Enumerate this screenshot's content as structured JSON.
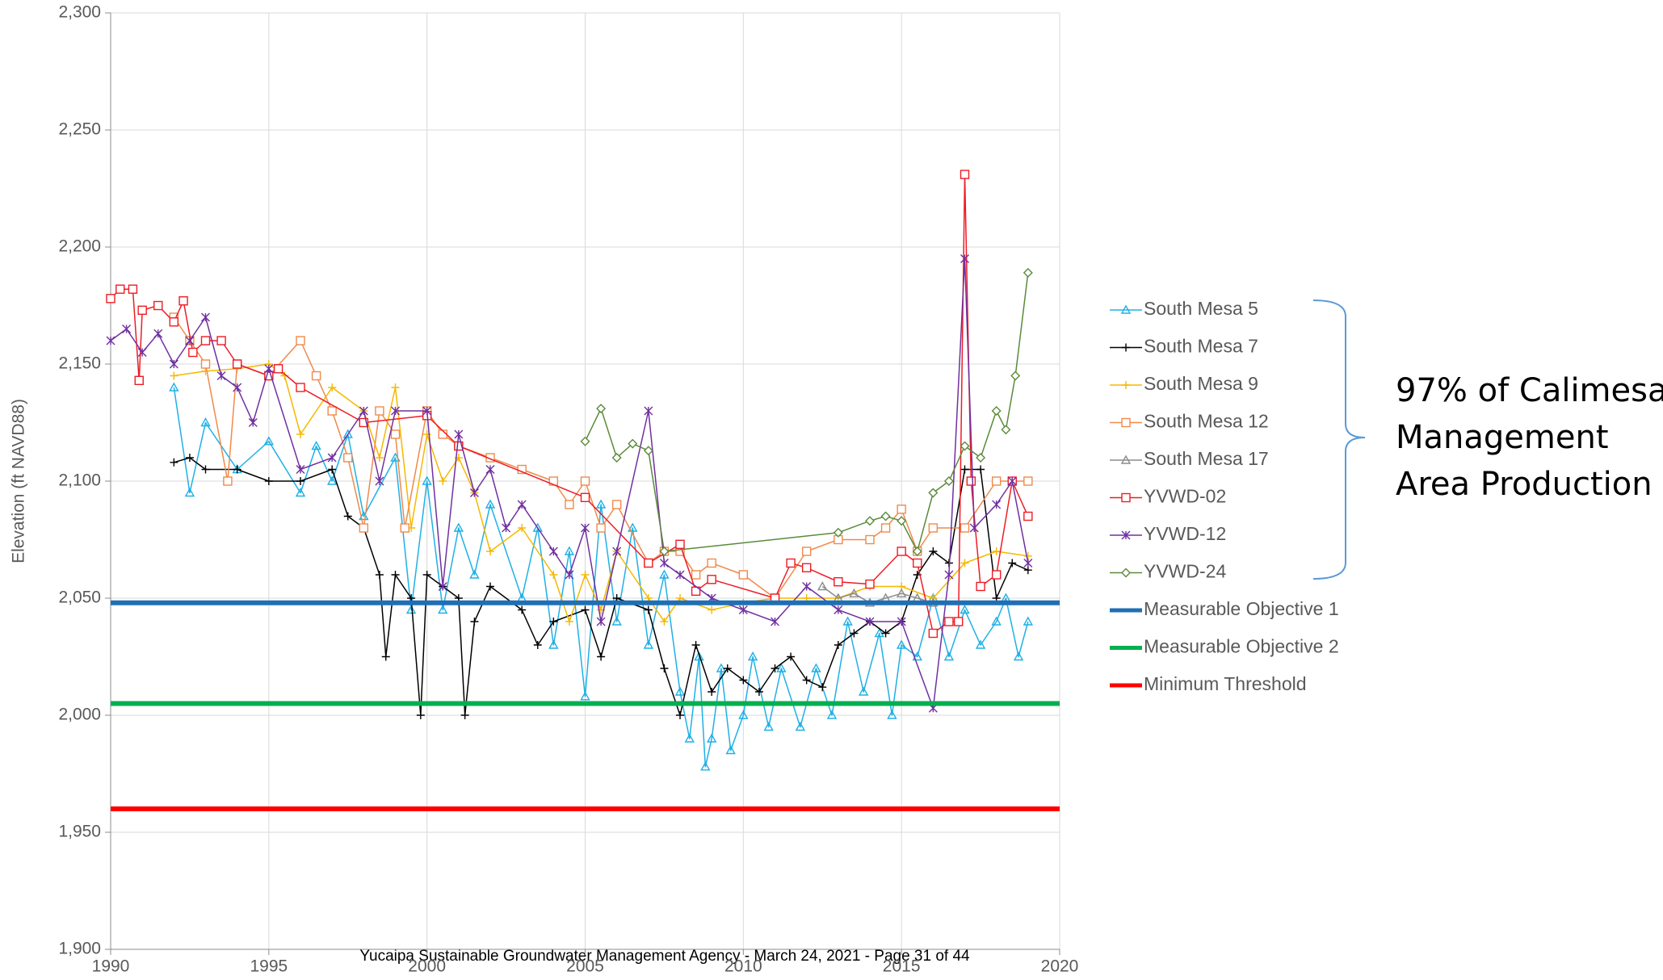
{
  "chart_data": {
    "type": "line",
    "y_label": "Elevation (ft NAVD88)",
    "footer": "Yucaipa Sustainable Groundwater Management Agency - March 24, 2021 - Page 31 of 44",
    "annotation": [
      "97% of Calimesa",
      "Management",
      "Area  Production"
    ],
    "xlim": [
      1990,
      2020
    ],
    "xticks": [
      1990,
      1995,
      2000,
      2005,
      2010,
      2015,
      2020
    ],
    "ylim": [
      1900,
      2300
    ],
    "yticks": [
      {
        "value": 1900,
        "label": "1,900"
      },
      {
        "value": 1950,
        "label": "1,950"
      },
      {
        "value": 2000,
        "label": "2,000"
      },
      {
        "value": 2050,
        "label": "2,050"
      },
      {
        "value": 2100,
        "label": "2,100"
      },
      {
        "value": 2150,
        "label": "2,150"
      },
      {
        "value": 2200,
        "label": "2,200"
      },
      {
        "value": 2250,
        "label": "2,250"
      },
      {
        "value": 2300,
        "label": "2,300"
      }
    ],
    "grid": true,
    "legend": "right",
    "series": [
      {
        "name": "South Mesa 5",
        "color": "#1fb0e6",
        "marker": "triangle",
        "x": [
          1992,
          1992.5,
          1993,
          1994,
          1995,
          1996,
          1996.5,
          1997,
          1997.5,
          1998,
          1999,
          1999.5,
          2000,
          2000.5,
          2001,
          2001.5,
          2002,
          2003,
          2003.5,
          2004,
          2004.5,
          2005,
          2005.5,
          2006,
          2006.5,
          2007,
          2007.5,
          2008,
          2008.3,
          2008.6,
          2008.8,
          2009,
          2009.3,
          2009.6,
          2010,
          2010.3,
          2010.8,
          2011.2,
          2011.8,
          2012.3,
          2012.8,
          2013.3,
          2013.8,
          2014.3,
          2014.7,
          2015,
          2015.5,
          2016,
          2016.5,
          2017,
          2017.5,
          2018,
          2018.3,
          2018.7,
          2019
        ],
        "values": [
          2140,
          2095,
          2125,
          2105,
          2117,
          2095,
          2115,
          2100,
          2120,
          2085,
          2110,
          2045,
          2100,
          2045,
          2080,
          2060,
          2090,
          2050,
          2080,
          2030,
          2070,
          2008,
          2090,
          2040,
          2080,
          2030,
          2060,
          2010,
          1990,
          2025,
          1978,
          1990,
          2020,
          1985,
          2000,
          2025,
          1995,
          2020,
          1995,
          2020,
          2000,
          2040,
          2010,
          2035,
          2000,
          2030,
          2025,
          2050,
          2025,
          2045,
          2030,
          2040,
          2050,
          2025,
          2040
        ]
      },
      {
        "name": "South Mesa 7",
        "color": "#000000",
        "marker": "plus",
        "x": [
          1992,
          1992.5,
          1993,
          1994,
          1995,
          1996,
          1997,
          1997.5,
          1998,
          1998.5,
          1998.7,
          1999,
          1999.5,
          1999.8,
          2000,
          2000.5,
          2001,
          2001.2,
          2001.5,
          2002,
          2003,
          2003.5,
          2004,
          2005,
          2005.5,
          2006,
          2007,
          2007.5,
          2008,
          2008.5,
          2009,
          2009.5,
          2010,
          2010.5,
          2011,
          2011.5,
          2012,
          2012.5,
          2013,
          2013.5,
          2014,
          2014.5,
          2015,
          2015.5,
          2016,
          2016.5,
          2017,
          2017.5,
          2018,
          2018.5,
          2019
        ],
        "values": [
          2108,
          2110,
          2105,
          2105,
          2100,
          2100,
          2105,
          2085,
          2080,
          2060,
          2025,
          2060,
          2050,
          2000,
          2060,
          2055,
          2050,
          2000,
          2040,
          2055,
          2045,
          2030,
          2040,
          2045,
          2025,
          2050,
          2045,
          2020,
          2000,
          2030,
          2010,
          2020,
          2015,
          2010,
          2020,
          2025,
          2015,
          2012,
          2030,
          2035,
          2040,
          2035,
          2040,
          2060,
          2070,
          2065,
          2105,
          2105,
          2050,
          2065,
          2062
        ]
      },
      {
        "name": "South Mesa 9",
        "color": "#f5b800",
        "marker": "plus",
        "x": [
          1992,
          1993,
          1994,
          1995,
          1995.5,
          1996,
          1997,
          1998,
          1998.5,
          1999,
          1999.5,
          2000,
          2000.5,
          2001,
          2001.5,
          2002,
          2003,
          2004,
          2004.5,
          2005,
          2005.5,
          2006,
          2007,
          2007.5,
          2008,
          2009,
          2010,
          2011,
          2012,
          2013,
          2014,
          2015,
          2016,
          2017,
          2018,
          2019
        ],
        "values": [
          2145,
          2147,
          2148,
          2150,
          2145,
          2120,
          2140,
          2130,
          2110,
          2140,
          2080,
          2120,
          2100,
          2110,
          2095,
          2070,
          2080,
          2060,
          2040,
          2060,
          2045,
          2070,
          2050,
          2040,
          2050,
          2045,
          2048,
          2050,
          2050,
          2050,
          2055,
          2055,
          2050,
          2065,
          2070,
          2068
        ]
      },
      {
        "name": "South Mesa 12",
        "color": "#f08a4b",
        "marker": "square",
        "x": [
          1992,
          1992.5,
          1993,
          1993.7,
          1994,
          1995,
          1996,
          1996.5,
          1997,
          1997.5,
          1998,
          1998.5,
          1999,
          1999.3,
          2000,
          2000.5,
          2001,
          2002,
          2003,
          2004,
          2004.5,
          2005,
          2005.5,
          2006,
          2007,
          2007.5,
          2008,
          2008.5,
          2009,
          2010,
          2011,
          2012,
          2013,
          2014,
          2014.5,
          2015,
          2015.5,
          2016,
          2017,
          2018,
          2019
        ],
        "values": [
          2170,
          2160,
          2150,
          2100,
          2150,
          2145,
          2160,
          2145,
          2130,
          2110,
          2080,
          2130,
          2120,
          2080,
          2130,
          2120,
          2115,
          2110,
          2105,
          2100,
          2090,
          2100,
          2080,
          2090,
          2065,
          2070,
          2070,
          2060,
          2065,
          2060,
          2050,
          2070,
          2075,
          2075,
          2080,
          2088,
          2070,
          2080,
          2080,
          2100,
          2100
        ]
      },
      {
        "name": "South Mesa 17",
        "color": "#8c8c8c",
        "marker": "triangle",
        "x": [
          2012.5,
          2013,
          2013.5,
          2014,
          2014.5,
          2015,
          2015.5,
          2016
        ],
        "values": [
          2055,
          2050,
          2052,
          2048,
          2050,
          2052,
          2050,
          2048
        ]
      },
      {
        "name": "YVWD-02",
        "color": "#ee1c25",
        "marker": "square",
        "x": [
          1990,
          1990.3,
          1990.7,
          1990.9,
          1991,
          1991.5,
          1992,
          1992.3,
          1992.6,
          1993,
          1993.5,
          1994,
          1995,
          1995.3,
          1996,
          1998,
          2000,
          2001,
          2005,
          2007,
          2008,
          2008.5,
          2009,
          2011,
          2011.5,
          2012,
          2013,
          2014,
          2015,
          2015.5,
          2016,
          2016.5,
          2016.8,
          2017,
          2017.2,
          2017.5,
          2018,
          2018.5,
          2019
        ],
        "values": [
          2178,
          2182,
          2182,
          2143,
          2173,
          2175,
          2168,
          2177,
          2155,
          2160,
          2160,
          2150,
          2145,
          2148,
          2140,
          2125,
          2128,
          2115,
          2093,
          2065,
          2073,
          2053,
          2058,
          2050,
          2065,
          2063,
          2057,
          2056,
          2070,
          2065,
          2035,
          2040,
          2040,
          2231,
          2100,
          2055,
          2060,
          2100,
          2085
        ]
      },
      {
        "name": "YVWD-12",
        "color": "#7030a0",
        "marker": "star",
        "x": [
          1990,
          1990.5,
          1991,
          1991.5,
          1992,
          1992.5,
          1993,
          1993.5,
          1994,
          1994.5,
          1995,
          1996,
          1997,
          1998,
          1998.5,
          1999,
          2000,
          2000.5,
          2001,
          2001.5,
          2002,
          2002.5,
          2003,
          2004,
          2004.5,
          2005,
          2005.5,
          2006,
          2007,
          2007.5,
          2008,
          2009,
          2010,
          2011,
          2012,
          2013,
          2014,
          2015,
          2016,
          2016.5,
          2017,
          2017.3,
          2018,
          2018.5,
          2019
        ],
        "values": [
          2160,
          2165,
          2155,
          2163,
          2150,
          2160,
          2170,
          2145,
          2140,
          2125,
          2148,
          2105,
          2110,
          2130,
          2100,
          2130,
          2130,
          2055,
          2120,
          2095,
          2105,
          2080,
          2090,
          2070,
          2060,
          2080,
          2040,
          2070,
          2130,
          2065,
          2060,
          2050,
          2045,
          2040,
          2055,
          2045,
          2040,
          2040,
          2003,
          2060,
          2195,
          2080,
          2090,
          2100,
          2065
        ]
      },
      {
        "name": "YVWD-24",
        "color": "#5b8a3a",
        "marker": "diamond",
        "x": [
          2005,
          2005.5,
          2006,
          2006.5,
          2007,
          2007.5,
          2013,
          2014,
          2014.5,
          2015,
          2015.5,
          2016,
          2016.5,
          2017,
          2017.5,
          2018,
          2018.3,
          2018.6,
          2019
        ],
        "values": [
          2117,
          2131,
          2110,
          2116,
          2113,
          2070,
          2078,
          2083,
          2085,
          2083,
          2070,
          2095,
          2100,
          2115,
          2110,
          2130,
          2122,
          2145,
          2189
        ]
      },
      {
        "name": "Measurable Objective 1",
        "color": "#1f6fb4",
        "marker": "none",
        "x": [
          1990,
          2020
        ],
        "values": [
          2048,
          2048
        ]
      },
      {
        "name": "Measurable Objective 2",
        "color": "#00b050",
        "marker": "none",
        "x": [
          1990,
          2020
        ],
        "values": [
          2005,
          2005
        ]
      },
      {
        "name": "Minimum Threshold",
        "color": "#ff0000",
        "marker": "none",
        "x": [
          1990,
          2020
        ],
        "values": [
          1960,
          1960
        ]
      }
    ]
  }
}
